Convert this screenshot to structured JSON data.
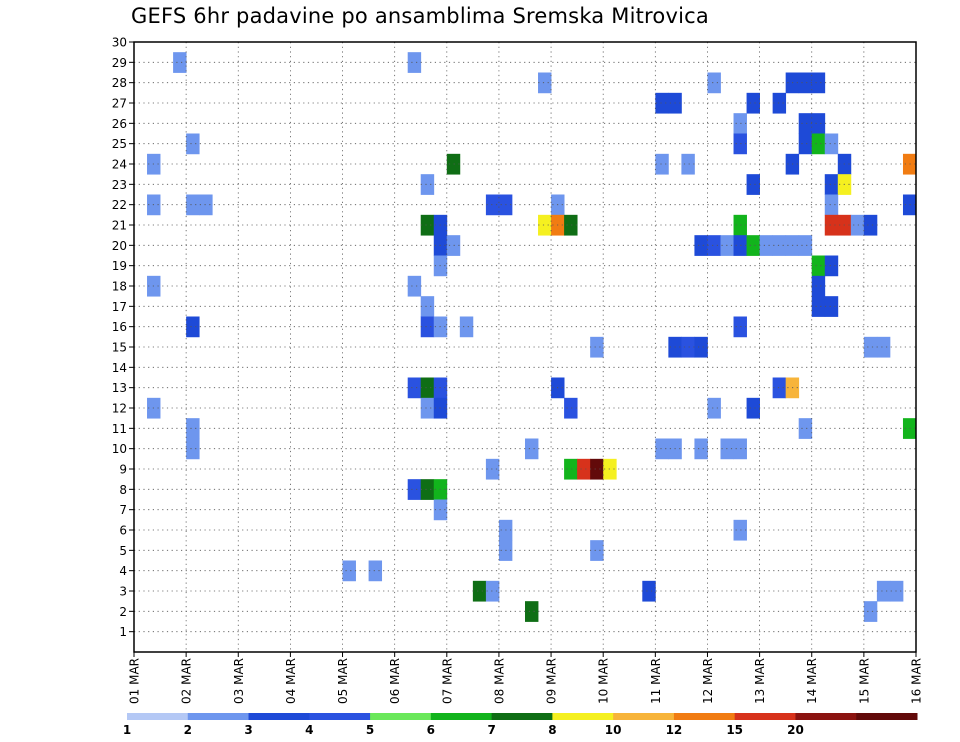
{
  "chart_data": {
    "type": "heatmap",
    "title": "GEFS 6hr padavine po ansamblima Sremska Mitrovica",
    "x_tick_labels": [
      "01 MAR",
      "02 MAR",
      "03 MAR",
      "04 MAR",
      "05 MAR",
      "06 MAR",
      "07 MAR",
      "08 MAR",
      "09 MAR",
      "10 MAR",
      "11 MAR",
      "12 MAR",
      "13 MAR",
      "14 MAR",
      "15 MAR",
      "16 MAR"
    ],
    "y_tick_labels": [
      "1",
      "2",
      "3",
      "4",
      "5",
      "6",
      "7",
      "8",
      "9",
      "10",
      "11",
      "12",
      "13",
      "14",
      "15",
      "16",
      "17",
      "18",
      "19",
      "20",
      "21",
      "22",
      "23",
      "24",
      "25",
      "26",
      "27",
      "28",
      "29",
      "30"
    ],
    "xlim": [
      0,
      60
    ],
    "ylim": [
      0,
      30
    ],
    "legend_thresholds": [
      "1",
      "2",
      "3",
      "4",
      "5",
      "6",
      "7",
      "8",
      "10",
      "12",
      "15",
      "20"
    ],
    "legend_colors": [
      "#b4c8f5",
      "#6e96ee",
      "#1e4ad7",
      "#2a52e0",
      "#6ae85a",
      "#12b41c",
      "#0f6e15",
      "#f5f020",
      "#f7b43a",
      "#f17c12",
      "#d7321b",
      "#8b1310",
      "#620a0a"
    ],
    "grid": true,
    "cells": [
      [
        3.5,
        29,
        1
      ],
      [
        21.5,
        29,
        1
      ],
      [
        31.5,
        28,
        1
      ],
      [
        44.5,
        28,
        1
      ],
      [
        50.5,
        28,
        2
      ],
      [
        51.5,
        28,
        2
      ],
      [
        52.5,
        28,
        2
      ],
      [
        40.5,
        27,
        2
      ],
      [
        41.5,
        27,
        2
      ],
      [
        47.5,
        27,
        2
      ],
      [
        49.5,
        27,
        2
      ],
      [
        46.5,
        26,
        1
      ],
      [
        51.5,
        26,
        2
      ],
      [
        52.5,
        26,
        2
      ],
      [
        4.5,
        25,
        1
      ],
      [
        46.5,
        25,
        3
      ],
      [
        51.5,
        25,
        2
      ],
      [
        52.5,
        25,
        5
      ],
      [
        53.5,
        25,
        1
      ],
      [
        1.5,
        24,
        1
      ],
      [
        24.5,
        24,
        6
      ],
      [
        40.5,
        24,
        1
      ],
      [
        42.5,
        24,
        1
      ],
      [
        50.5,
        24,
        2
      ],
      [
        54.5,
        24,
        2
      ],
      [
        59.5,
        24,
        9
      ],
      [
        22.5,
        23,
        1
      ],
      [
        47.5,
        23,
        2
      ],
      [
        53.5,
        23,
        2
      ],
      [
        54.5,
        23,
        7
      ],
      [
        1.5,
        22,
        1
      ],
      [
        4.5,
        22,
        1
      ],
      [
        5.5,
        22,
        1
      ],
      [
        27.5,
        22,
        3
      ],
      [
        28.5,
        22,
        3
      ],
      [
        32.5,
        22,
        1
      ],
      [
        53.5,
        22,
        1
      ],
      [
        59.5,
        22,
        2
      ],
      [
        22.5,
        21,
        6
      ],
      [
        23.5,
        21,
        2
      ],
      [
        31.5,
        21,
        7
      ],
      [
        32.5,
        21,
        9
      ],
      [
        33.5,
        21,
        6
      ],
      [
        46.5,
        21,
        5
      ],
      [
        53.5,
        21,
        10
      ],
      [
        54.5,
        21,
        10
      ],
      [
        55.5,
        21,
        1
      ],
      [
        56.5,
        21,
        2
      ],
      [
        23.5,
        20,
        2
      ],
      [
        24.5,
        20,
        1
      ],
      [
        43.5,
        20,
        2
      ],
      [
        44.5,
        20,
        3
      ],
      [
        45.5,
        20,
        1
      ],
      [
        46.5,
        20,
        2
      ],
      [
        47.5,
        20,
        5
      ],
      [
        48.5,
        20,
        1
      ],
      [
        49.5,
        20,
        1
      ],
      [
        50.5,
        20,
        1
      ],
      [
        51.5,
        20,
        1
      ],
      [
        23.5,
        19,
        1
      ],
      [
        52.5,
        19,
        5
      ],
      [
        53.5,
        19,
        2
      ],
      [
        1.5,
        18,
        1
      ],
      [
        21.5,
        18,
        1
      ],
      [
        52.5,
        18,
        2
      ],
      [
        22.5,
        17,
        1
      ],
      [
        52.5,
        17,
        2
      ],
      [
        53.5,
        17,
        2
      ],
      [
        4.5,
        16,
        2
      ],
      [
        22.5,
        16,
        3
      ],
      [
        23.5,
        16,
        1
      ],
      [
        25.5,
        16,
        1
      ],
      [
        46.5,
        16,
        3
      ],
      [
        35.5,
        15,
        1
      ],
      [
        41.5,
        15,
        2
      ],
      [
        42.5,
        15,
        3
      ],
      [
        43.5,
        15,
        2
      ],
      [
        56.5,
        15,
        1
      ],
      [
        57.5,
        15,
        1
      ],
      [
        21.5,
        13,
        3
      ],
      [
        22.5,
        13,
        6
      ],
      [
        23.5,
        13,
        3
      ],
      [
        32.5,
        13,
        2
      ],
      [
        49.5,
        13,
        3
      ],
      [
        50.5,
        13,
        8
      ],
      [
        1.5,
        12,
        1
      ],
      [
        22.5,
        12,
        1
      ],
      [
        23.5,
        12,
        2
      ],
      [
        33.5,
        12,
        3
      ],
      [
        44.5,
        12,
        1
      ],
      [
        47.5,
        12,
        2
      ],
      [
        4.5,
        11,
        1
      ],
      [
        51.5,
        11,
        1
      ],
      [
        59.5,
        11,
        5
      ],
      [
        4.5,
        10,
        1
      ],
      [
        30.5,
        10,
        1
      ],
      [
        40.5,
        10,
        1
      ],
      [
        41.5,
        10,
        1
      ],
      [
        43.5,
        10,
        1
      ],
      [
        45.5,
        10,
        1
      ],
      [
        46.5,
        10,
        1
      ],
      [
        27.5,
        9,
        1
      ],
      [
        33.5,
        9,
        5
      ],
      [
        34.5,
        9,
        10
      ],
      [
        35.5,
        9,
        12
      ],
      [
        36.5,
        9,
        7
      ],
      [
        21.5,
        8,
        3
      ],
      [
        22.5,
        8,
        6
      ],
      [
        23.5,
        8,
        5
      ],
      [
        23.5,
        7,
        1
      ],
      [
        28.5,
        6,
        1
      ],
      [
        46.5,
        6,
        1
      ],
      [
        28.5,
        5,
        1
      ],
      [
        35.5,
        5,
        1
      ],
      [
        16.5,
        4,
        1
      ],
      [
        18.5,
        4,
        1
      ],
      [
        26.5,
        3,
        6
      ],
      [
        27.5,
        3,
        1
      ],
      [
        39.5,
        3,
        2
      ],
      [
        57.5,
        3,
        1
      ],
      [
        58.5,
        3,
        1
      ],
      [
        30.5,
        2,
        6
      ],
      [
        56.5,
        2,
        1
      ]
    ]
  }
}
